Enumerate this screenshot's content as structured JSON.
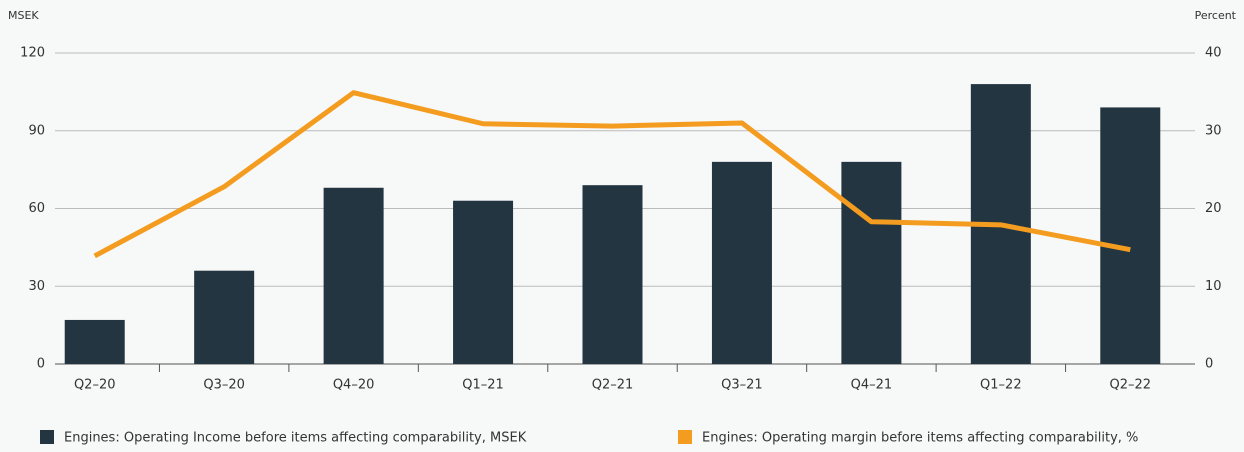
{
  "chart_data": {
    "type": "bar_line",
    "y_label": "MSEK",
    "y2_label": "Percent",
    "categories": [
      "Q2–20",
      "Q3–20",
      "Q4–20",
      "Q1–21",
      "Q2–21",
      "Q3–21",
      "Q4–21",
      "Q1–22",
      "Q2–22"
    ],
    "series": [
      {
        "name": "Engines: Operating Income before items affecting comparability, MSEK",
        "type": "bar",
        "color": "#233540",
        "values": [
          17,
          36,
          68,
          63,
          69,
          78,
          78,
          108,
          99
        ]
      },
      {
        "name": "Engines: Operating margin before items affecting comparability, %",
        "type": "line",
        "axis": "y2",
        "color": "#f39c1f",
        "values": [
          13.9,
          22.8,
          34.9,
          30.9,
          30.6,
          31.0,
          18.3,
          17.9,
          14.7
        ]
      }
    ],
    "ylim": [
      0,
      120
    ],
    "yticks": [
      0,
      30,
      60,
      90,
      120
    ],
    "y2lim": [
      0,
      40
    ],
    "y2ticks": [
      0,
      10,
      20,
      30,
      40
    ],
    "grid": true,
    "legend": "bottom"
  }
}
